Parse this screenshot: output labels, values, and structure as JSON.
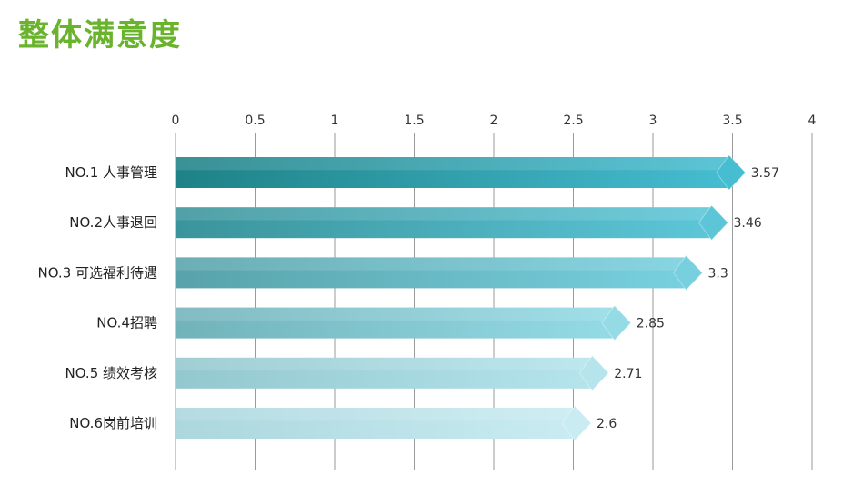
{
  "page_title": "整体满意度",
  "chart_data": {
    "type": "bar",
    "orientation": "horizontal",
    "title": "整体满意度",
    "xlim": [
      0,
      4
    ],
    "xticks": [
      0,
      0.5,
      1,
      1.5,
      2,
      2.5,
      3,
      3.5,
      4
    ],
    "xtick_labels": [
      "0",
      "0.5",
      "1",
      "1.5",
      "2",
      "2.5",
      "3",
      "3.5",
      "4"
    ],
    "xaxis_position": "top",
    "grid": "vertical",
    "categories": [
      "NO.1 人事管理",
      "NO.2人事退回",
      "NO.3 可选福利待遇",
      "NO.4招聘",
      "NO.5 绩效考核",
      "NO.6岗前培训"
    ],
    "values": [
      3.57,
      3.46,
      3.3,
      2.85,
      2.71,
      2.6
    ],
    "value_labels": [
      "3.57",
      "3.46",
      "3.3",
      "2.85",
      "2.71",
      "2.6"
    ],
    "bar_gradients": [
      [
        "#1e8287",
        "#46bdd1"
      ],
      [
        "#3a949b",
        "#5cc6d8"
      ],
      [
        "#58a3aa",
        "#78d0df"
      ],
      [
        "#72b3ba",
        "#94dbe6"
      ],
      [
        "#93c8ce",
        "#b5e4ec"
      ],
      [
        "#abd7dd",
        "#c9ecf2"
      ]
    ]
  }
}
